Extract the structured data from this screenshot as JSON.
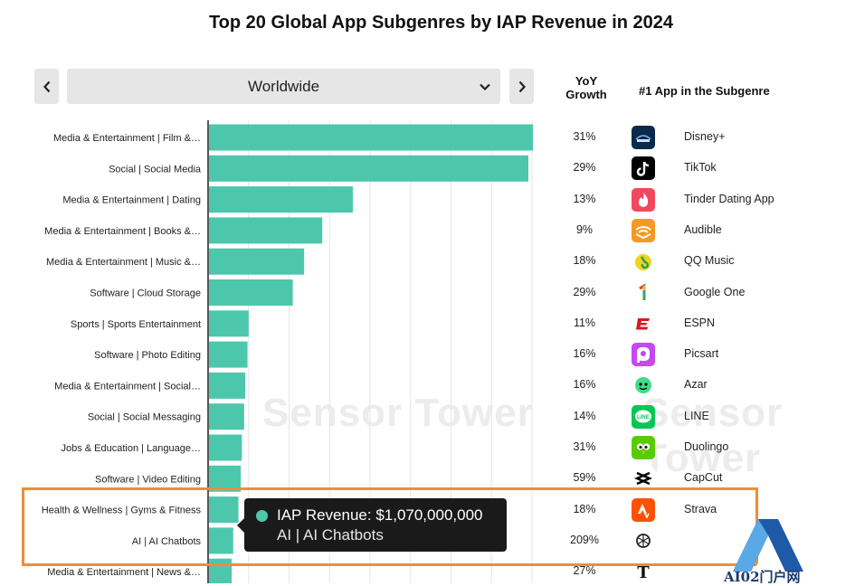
{
  "title": "Top 20 Global App Subgenres by IAP Revenue in 2024",
  "controls": {
    "region": "Worldwide"
  },
  "headers": {
    "yoy_line1": "YoY",
    "yoy_line2": "Growth",
    "top_app": "#1  App in the Subgenre"
  },
  "watermark": "Sensor Tower",
  "tooltip": {
    "revenue": "IAP Revenue: $1,070,000,000",
    "label": "AI | AI Chatbots"
  },
  "brand": {
    "logo_text": "AI02门户网"
  },
  "colors": {
    "bar": "#4dc7ac",
    "highlight": "#f08c3a",
    "tooltip_bg": "#1a1a1a"
  },
  "chart_data": {
    "type": "bar",
    "orientation": "horizontal",
    "title": "Top 20 Global App Subgenres by IAP Revenue in 2024",
    "categories": [
      "Media & Entertainment | Film &…",
      "Social | Social Media",
      "Media & Entertainment | Dating",
      "Media & Entertainment | Books &…",
      "Media & Entertainment | Music &…",
      "Software | Cloud Storage",
      "Sports | Sports Entertainment",
      "Software | Photo Editing",
      "Media & Entertainment | Social…",
      "Social | Social Messaging",
      "Jobs & Education | Language…",
      "Software | Video Editing",
      "Health & Wellness | Gyms & Fitness",
      "AI | AI Chatbots",
      "Media & Entertainment | News &…"
    ],
    "values": [
      14.3,
      14.1,
      6.35,
      5.0,
      4.2,
      3.7,
      1.75,
      1.7,
      1.6,
      1.55,
      1.45,
      1.4,
      1.3,
      1.07,
      1.0
    ],
    "unit": "billion USD",
    "xlim": [
      0,
      14.3
    ],
    "grid": true,
    "yoy": [
      "31%",
      "29%",
      "13%",
      "9%",
      "18%",
      "29%",
      "11%",
      "16%",
      "16%",
      "14%",
      "31%",
      "59%",
      "18%",
      "209%",
      "27%"
    ],
    "top_apps": [
      "Disney+",
      "TikTok",
      "Tinder Dating App",
      "Audible",
      "QQ Music",
      "Google One",
      "ESPN",
      "Picsart",
      "Azar",
      "LINE",
      "Duolingo",
      "CapCut",
      "Strava",
      "",
      ""
    ]
  }
}
